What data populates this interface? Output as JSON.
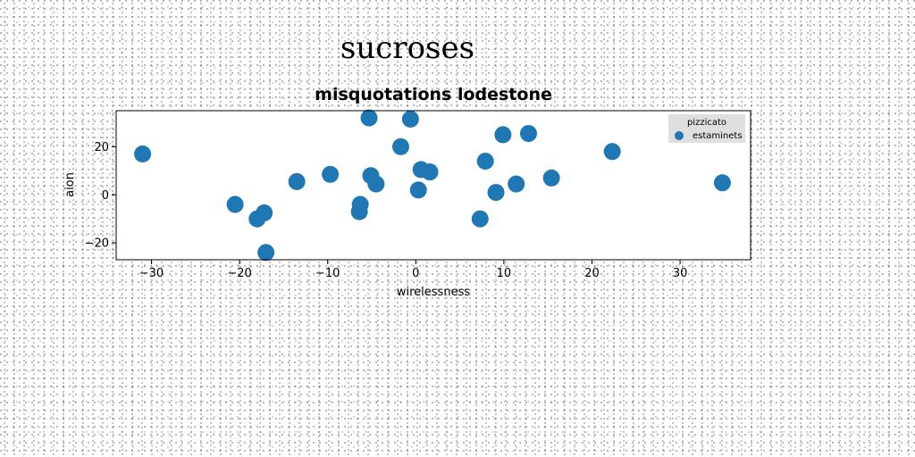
{
  "page": {
    "suptitle": "sucroses"
  },
  "chart_data": {
    "type": "scatter",
    "title": "misquotations lodestone",
    "xlabel": "wirelessness",
    "ylabel": "aion",
    "xlim": [
      -34,
      38
    ],
    "ylim": [
      -27,
      35
    ],
    "xticks": [
      -30,
      -20,
      -10,
      0,
      10,
      20,
      30
    ],
    "yticks": [
      -20,
      0,
      20
    ],
    "tick_labels_x": [
      "−30",
      "−20",
      "−10",
      "0",
      "10",
      "20",
      "30"
    ],
    "tick_labels_y": [
      "−20",
      "0",
      "20"
    ],
    "grid": false,
    "legend": {
      "title": "pizzicato",
      "placement": "top-right"
    },
    "series": [
      {
        "name": "estaminets",
        "color": "#1f77b4",
        "x": [
          -31,
          -20.5,
          -18,
          -17.2,
          -17,
          -13.5,
          -9.7,
          -6.3,
          -6.4,
          -5.3,
          -5.1,
          -4.5,
          -1.7,
          -0.6,
          0.3,
          0.6,
          1.6,
          7.3,
          7.9,
          9.1,
          9.9,
          11.4,
          12.8,
          15.4,
          22.3,
          34.8
        ],
        "y": [
          17,
          -4,
          -10,
          -7.5,
          -24,
          5.5,
          8.5,
          -4,
          -7,
          32,
          8,
          4.5,
          20,
          31.5,
          2,
          10.5,
          9.5,
          -10,
          14,
          1,
          25,
          4.5,
          25.5,
          7,
          18,
          5
        ]
      }
    ]
  }
}
